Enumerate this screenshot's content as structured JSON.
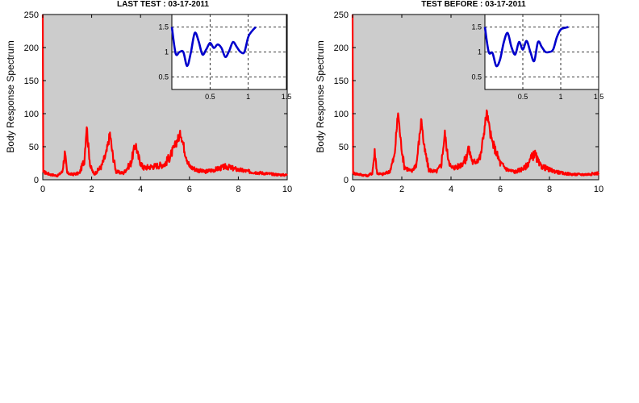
{
  "chart_data": [
    {
      "type": "line",
      "title": "LAST TEST : 03-17-2011",
      "ylabel": "Body Response Spectrum",
      "xlabel": "",
      "xlim": [
        0,
        10
      ],
      "ylim": [
        0,
        250
      ],
      "xticks": [
        "0",
        "2",
        "4",
        "6",
        "8",
        "10"
      ],
      "yticks": [
        "0",
        "50",
        "100",
        "150",
        "200",
        "250"
      ],
      "background": "#cccccc",
      "line_color": "#ff0000",
      "grid": false,
      "series": [
        {
          "x": [
            0,
            0.02,
            0.3,
            0.6,
            0.8,
            0.9,
            1.0,
            1.2,
            1.5,
            1.7,
            1.8,
            1.85,
            1.95,
            2.1,
            2.4,
            2.6,
            2.75,
            2.85,
            3.0,
            3.3,
            3.6,
            3.8,
            3.9,
            4.1,
            4.5,
            4.8,
            5.0,
            5.2,
            5.4,
            5.5,
            5.65,
            5.8,
            6.0,
            6.3,
            6.6,
            7.0,
            7.5,
            8.0,
            8.5,
            9.0,
            9.5,
            10.0
          ],
          "y": [
            250,
            12,
            8,
            6,
            12,
            40,
            10,
            8,
            10,
            30,
            83,
            55,
            20,
            8,
            20,
            40,
            70,
            40,
            12,
            10,
            25,
            55,
            35,
            18,
            20,
            22,
            24,
            35,
            50,
            60,
            70,
            45,
            20,
            15,
            12,
            15,
            20,
            15,
            12,
            10,
            8,
            7
          ]
        }
      ],
      "inset": {
        "xlim": [
          0,
          1.5
        ],
        "ylim": [
          0.25,
          1.75
        ],
        "xticks": [
          "0.5",
          "1",
          "1.5"
        ],
        "yticks": [
          "0.5",
          "1",
          "1.5"
        ],
        "grid": true,
        "line_color": "#0000cc",
        "x": [
          0.0,
          0.05,
          0.1,
          0.15,
          0.2,
          0.25,
          0.3,
          0.35,
          0.4,
          0.45,
          0.5,
          0.55,
          0.6,
          0.65,
          0.7,
          0.75,
          0.8,
          0.85,
          0.9,
          0.95,
          1.0,
          1.05,
          1.1
        ],
        "y": [
          1.5,
          0.97,
          1.0,
          1.0,
          0.72,
          1.0,
          1.38,
          1.22,
          0.95,
          1.05,
          1.18,
          1.08,
          1.15,
          1.08,
          0.9,
          1.02,
          1.2,
          1.1,
          1.0,
          1.0,
          1.3,
          1.42,
          1.5
        ]
      }
    },
    {
      "type": "line",
      "title": "TEST BEFORE : 03-17-2011",
      "ylabel": "Body Response Spectrum",
      "xlabel": "",
      "xlim": [
        0,
        10
      ],
      "ylim": [
        0,
        250
      ],
      "xticks": [
        "0",
        "2",
        "4",
        "6",
        "8",
        "10"
      ],
      "yticks": [
        "0",
        "50",
        "100",
        "150",
        "200",
        "250"
      ],
      "background": "#cccccc",
      "line_color": "#ff0000",
      "grid": false,
      "series": [
        {
          "x": [
            0,
            0.02,
            0.3,
            0.6,
            0.8,
            0.9,
            1.0,
            1.2,
            1.5,
            1.7,
            1.85,
            1.95,
            2.1,
            2.4,
            2.6,
            2.8,
            2.9,
            3.1,
            3.4,
            3.6,
            3.75,
            3.85,
            4.0,
            4.3,
            4.6,
            4.7,
            4.9,
            5.2,
            5.45,
            5.55,
            5.65,
            5.8,
            6.0,
            6.3,
            6.6,
            7.0,
            7.4,
            7.6,
            8.0,
            8.5,
            9.0,
            9.5,
            10.0
          ],
          "y": [
            250,
            10,
            8,
            6,
            10,
            42,
            10,
            8,
            12,
            35,
            103,
            60,
            20,
            12,
            25,
            93,
            50,
            15,
            12,
            22,
            70,
            40,
            18,
            20,
            30,
            48,
            25,
            35,
            102,
            80,
            60,
            45,
            25,
            15,
            12,
            18,
            40,
            22,
            15,
            10,
            8,
            8,
            10
          ]
        }
      ],
      "inset": {
        "xlim": [
          0,
          1.5
        ],
        "ylim": [
          0.25,
          1.75
        ],
        "xticks": [
          "0.5",
          "1",
          "1.5"
        ],
        "yticks": [
          "0.5",
          "1",
          "1.5"
        ],
        "grid": true,
        "line_color": "#0000cc",
        "x": [
          0.0,
          0.05,
          0.1,
          0.15,
          0.2,
          0.25,
          0.3,
          0.35,
          0.4,
          0.45,
          0.5,
          0.55,
          0.6,
          0.65,
          0.7,
          0.75,
          0.8,
          0.85,
          0.9,
          0.95,
          1.0,
          1.05,
          1.1
        ],
        "y": [
          1.5,
          1.0,
          0.98,
          0.72,
          0.85,
          1.2,
          1.38,
          1.1,
          0.95,
          1.2,
          1.05,
          1.22,
          1.0,
          0.82,
          1.2,
          1.1,
          1.0,
          1.0,
          1.05,
          1.3,
          1.45,
          1.48,
          1.5
        ]
      }
    }
  ]
}
